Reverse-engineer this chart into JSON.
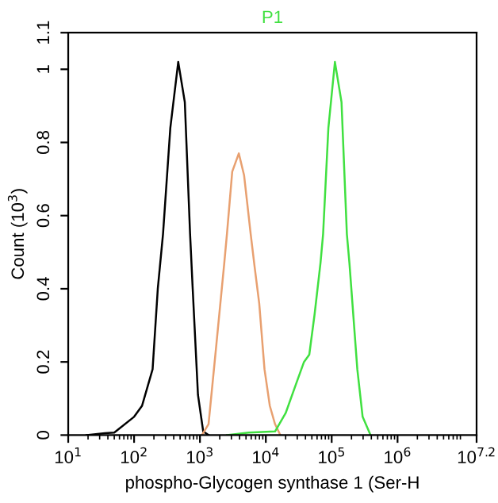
{
  "chart_data": {
    "type": "line",
    "xlabel": "phospho-Glycogen synthase 1 (Ser-H",
    "ylabel": "Count (10$^{3}$)",
    "log": "x",
    "grid": false,
    "legend": false,
    "marker": "none",
    "line_style": "solid",
    "xlim": [
      10,
      15848932
    ],
    "xticks": [
      {
        "value": 10,
        "label": "10$^{1}$"
      },
      {
        "value": 100,
        "label": "10$^{2}$"
      },
      {
        "value": 1000,
        "label": "10$^{3}$"
      },
      {
        "value": 10000,
        "label": "10$^{4}$"
      },
      {
        "value": 100000,
        "label": "10$^{5}$"
      },
      {
        "value": 1000000,
        "label": "10$^{6}$"
      },
      {
        "value": 15848932,
        "label": "10$^{7.2}$"
      }
    ],
    "ylim": [
      0,
      1.1
    ],
    "yticks": [
      0,
      0.2,
      0.4,
      0.6,
      0.8,
      1,
      1.1
    ],
    "series": [
      {
        "color": "#000000",
        "x": [
          19,
          36,
          50,
          100,
          132,
          191,
          229,
          275,
          355,
          468,
          589,
          708,
          776,
          933,
          1120,
          1350
        ],
        "values": [
          0,
          0.005,
          0.007,
          0.05,
          0.08,
          0.18,
          0.4,
          0.55,
          0.84,
          1.02,
          0.91,
          0.55,
          0.4,
          0.11,
          0.01,
          0
        ]
      },
      {
        "color": "#e8a070",
        "x": [
          1070,
          1350,
          1780,
          2340,
          2570,
          3090,
          3890,
          4680,
          5890,
          6760,
          7940,
          9550,
          11500,
          13800,
          16600
        ],
        "values": [
          0,
          0.03,
          0.25,
          0.47,
          0.55,
          0.72,
          0.77,
          0.71,
          0.55,
          0.46,
          0.36,
          0.18,
          0.08,
          0.03,
          0
        ]
      },
      {
        "name": "P1",
        "color": "#40e040",
        "x": [
          2570,
          5500,
          13800,
          20000,
          28800,
          38000,
          45700,
          55000,
          67600,
          74100,
          89100,
          112000,
          141000,
          170000,
          186000,
          245000,
          295000,
          389000
        ],
        "values": [
          0,
          0.007,
          0.01,
          0.06,
          0.14,
          0.2,
          0.22,
          0.33,
          0.47,
          0.55,
          0.84,
          1.02,
          0.91,
          0.55,
          0.47,
          0.18,
          0.05,
          0
        ]
      }
    ]
  }
}
